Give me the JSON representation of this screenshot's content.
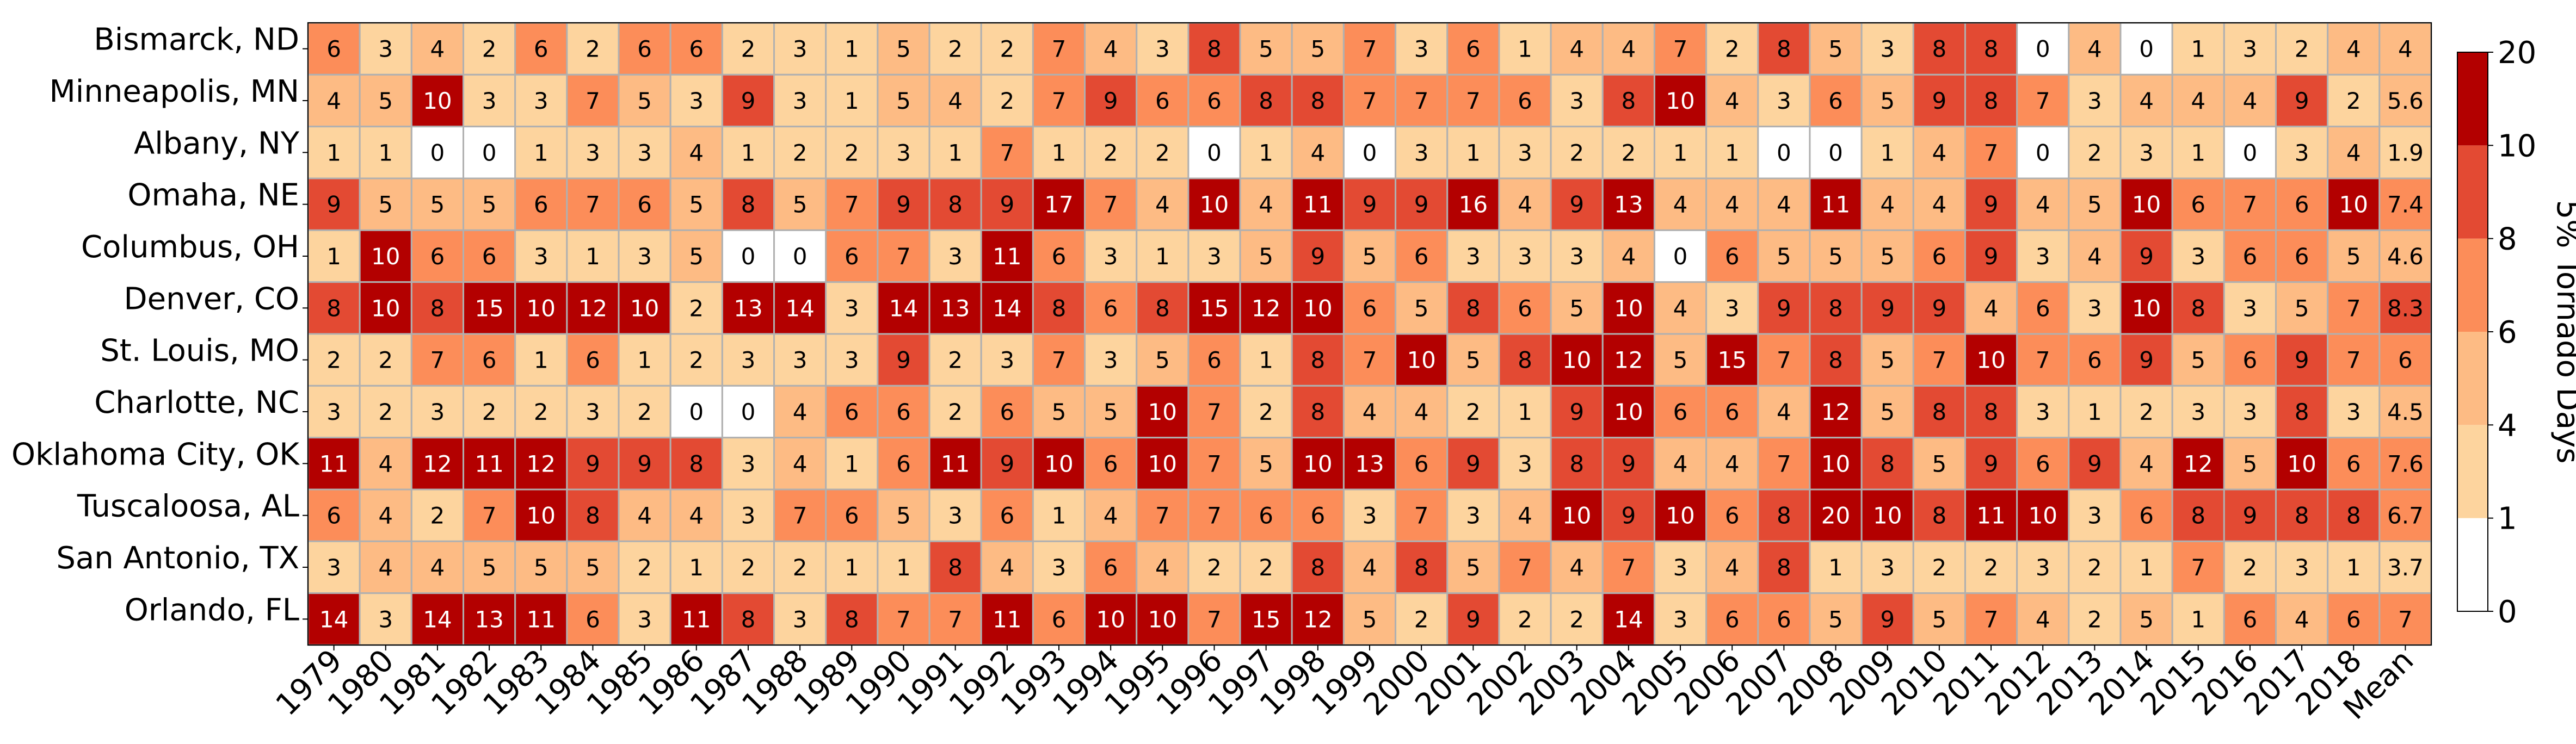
{
  "chart_data": {
    "type": "heatmap",
    "rows": [
      "Bismarck, ND",
      "Minneapolis, MN",
      "Albany, NY",
      "Omaha, NE",
      "Columbus, OH",
      "Denver, CO",
      "St. Louis, MO",
      "Charlotte, NC",
      "Oklahoma City, OK",
      "Tuscaloosa, AL",
      "San Antonio, TX",
      "Orlando, FL"
    ],
    "columns": [
      "1979",
      "1980",
      "1981",
      "1982",
      "1983",
      "1984",
      "1985",
      "1986",
      "1987",
      "1988",
      "1989",
      "1990",
      "1991",
      "1992",
      "1993",
      "1994",
      "1995",
      "1996",
      "1997",
      "1998",
      "1999",
      "2000",
      "2001",
      "2002",
      "2003",
      "2004",
      "2005",
      "2006",
      "2007",
      "2008",
      "2009",
      "2010",
      "2011",
      "2012",
      "2013",
      "2014",
      "2015",
      "2016",
      "2017",
      "2018",
      "Mean"
    ],
    "values": [
      [
        6,
        3,
        4,
        2,
        6,
        2,
        6,
        6,
        2,
        3,
        1,
        5,
        2,
        2,
        7,
        4,
        3,
        8,
        5,
        5,
        7,
        3,
        6,
        1,
        4,
        4,
        7,
        2,
        8,
        5,
        3,
        8,
        8,
        0,
        4,
        0,
        1,
        3,
        2,
        4,
        4.0
      ],
      [
        4,
        5,
        10,
        3,
        3,
        7,
        5,
        3,
        9,
        3,
        1,
        5,
        4,
        2,
        7,
        9,
        6,
        6,
        8,
        8,
        7,
        7,
        7,
        6,
        3,
        8,
        10,
        4,
        3,
        6,
        5,
        9,
        8,
        7,
        3,
        4,
        4,
        4,
        9,
        2,
        5.6
      ],
      [
        1,
        1,
        0,
        0,
        1,
        3,
        3,
        4,
        1,
        2,
        2,
        3,
        1,
        7,
        1,
        2,
        2,
        0,
        1,
        4,
        0,
        3,
        1,
        3,
        2,
        2,
        1,
        1,
        0,
        0,
        1,
        4,
        7,
        0,
        2,
        3,
        1,
        0,
        3,
        4,
        1.9
      ],
      [
        9,
        5,
        5,
        5,
        6,
        7,
        6,
        5,
        8,
        5,
        7,
        9,
        8,
        9,
        17,
        7,
        4,
        10,
        4,
        11,
        9,
        9,
        16,
        4,
        9,
        13,
        4,
        4,
        4,
        11,
        4,
        4,
        9,
        4,
        5,
        10,
        6,
        7,
        6,
        10,
        7.4
      ],
      [
        1,
        10,
        6,
        6,
        3,
        1,
        3,
        5,
        0,
        0,
        6,
        7,
        3,
        11,
        6,
        3,
        1,
        3,
        5,
        9,
        5,
        6,
        3,
        3,
        3,
        4,
        0,
        6,
        5,
        5,
        5,
        6,
        9,
        3,
        4,
        9,
        3,
        6,
        6,
        5,
        4.6
      ],
      [
        8,
        10,
        8,
        15,
        10,
        12,
        10,
        2,
        13,
        14,
        3,
        14,
        13,
        14,
        8,
        6,
        8,
        15,
        12,
        10,
        6,
        5,
        8,
        6,
        5,
        10,
        4,
        3,
        9,
        8,
        9,
        9,
        4,
        6,
        3,
        10,
        8,
        3,
        5,
        7,
        8.3
      ],
      [
        2,
        2,
        7,
        6,
        1,
        6,
        1,
        2,
        3,
        3,
        3,
        9,
        2,
        3,
        7,
        3,
        5,
        6,
        1,
        8,
        7,
        10,
        5,
        8,
        10,
        12,
        5,
        15,
        7,
        8,
        5,
        7,
        10,
        7,
        6,
        9,
        5,
        6,
        9,
        7,
        6.0
      ],
      [
        3,
        2,
        3,
        2,
        2,
        3,
        2,
        0,
        0,
        4,
        6,
        6,
        2,
        6,
        5,
        5,
        10,
        7,
        2,
        8,
        4,
        4,
        2,
        1,
        9,
        10,
        6,
        6,
        4,
        12,
        5,
        8,
        8,
        3,
        1,
        2,
        3,
        3,
        8,
        3,
        4.5
      ],
      [
        11,
        4,
        12,
        11,
        12,
        9,
        9,
        8,
        3,
        4,
        1,
        6,
        11,
        9,
        10,
        6,
        10,
        7,
        5,
        10,
        13,
        6,
        9,
        3,
        8,
        9,
        4,
        4,
        7,
        10,
        8,
        5,
        9,
        6,
        9,
        4,
        12,
        5,
        10,
        6,
        7.6
      ],
      [
        6,
        4,
        2,
        7,
        10,
        8,
        4,
        4,
        3,
        7,
        6,
        5,
        3,
        6,
        1,
        4,
        7,
        7,
        6,
        6,
        3,
        7,
        3,
        4,
        10,
        9,
        10,
        6,
        8,
        20,
        10,
        8,
        11,
        10,
        3,
        6,
        8,
        9,
        8,
        8,
        6.7
      ],
      [
        3,
        4,
        4,
        5,
        5,
        5,
        2,
        1,
        2,
        2,
        1,
        1,
        8,
        4,
        3,
        6,
        4,
        2,
        2,
        8,
        4,
        8,
        5,
        7,
        4,
        7,
        3,
        4,
        8,
        1,
        3,
        2,
        2,
        3,
        2,
        1,
        7,
        2,
        3,
        1,
        3.7
      ],
      [
        14,
        3,
        14,
        13,
        11,
        6,
        3,
        11,
        8,
        3,
        8,
        7,
        7,
        11,
        6,
        10,
        10,
        7,
        15,
        12,
        5,
        2,
        9,
        2,
        2,
        14,
        3,
        6,
        6,
        5,
        9,
        5,
        7,
        4,
        2,
        5,
        1,
        6,
        4,
        6,
        7.0
      ]
    ],
    "colorbar": {
      "title": "5% Tornado Days",
      "ticks": [
        "0",
        "1",
        "4",
        "6",
        "8",
        "10",
        "20"
      ],
      "boundaries": [
        0,
        1,
        4,
        6,
        8,
        10,
        20
      ],
      "colors": [
        "#ffffff",
        "#fdd49e",
        "#fdbb84",
        "#fc8d59",
        "#e34a33",
        "#b30000"
      ]
    }
  }
}
